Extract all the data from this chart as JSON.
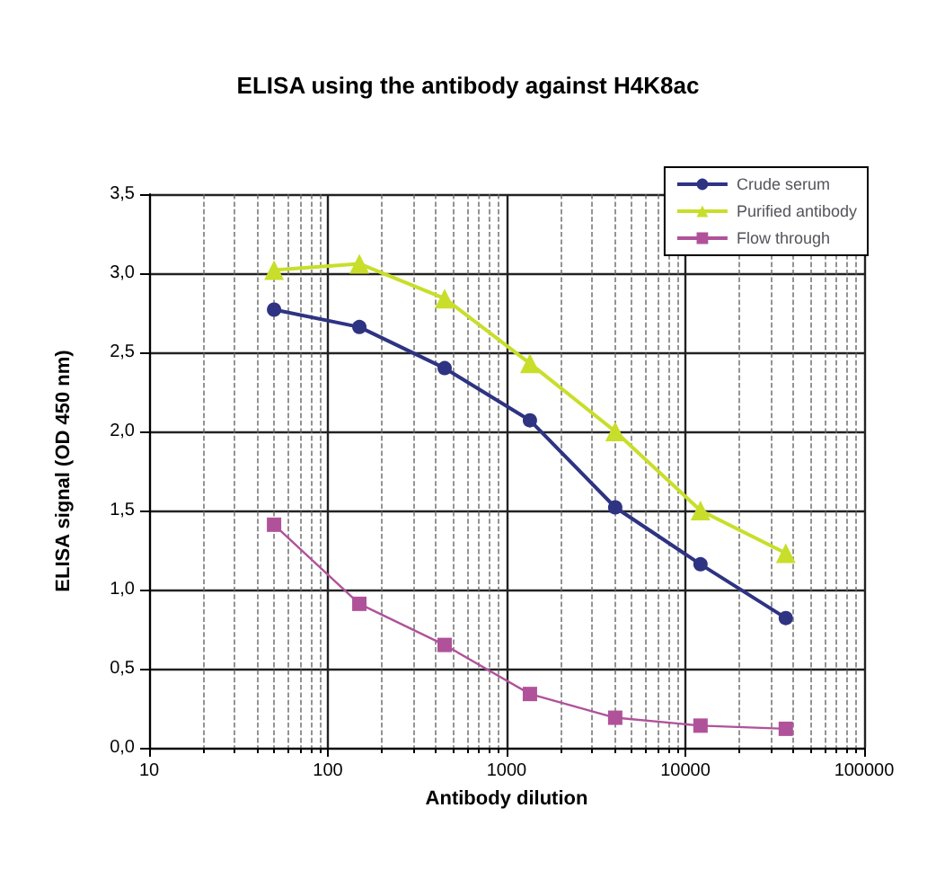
{
  "chart_data": {
    "type": "line",
    "title": "ELISA using the antibody against H4K8ac",
    "xlabel": "Antibody dilution",
    "ylabel": "ELISA signal (OD 450 nm)",
    "x": [
      50,
      150,
      450,
      1350,
      4050,
      12150,
      36450
    ],
    "series": [
      {
        "name": "Crude serum",
        "color": "#2e3382",
        "marker": "circle",
        "values": [
          2.77,
          2.66,
          2.4,
          2.07,
          1.52,
          1.16,
          0.82
        ]
      },
      {
        "name": "Purified antibody",
        "color": "#c8de2a",
        "marker": "triangle",
        "values": [
          3.02,
          3.06,
          2.84,
          2.43,
          2.0,
          1.5,
          1.23
        ]
      },
      {
        "name": "Flow through",
        "color": "#b0529a",
        "marker": "square",
        "values": [
          1.41,
          0.91,
          0.65,
          0.34,
          0.19,
          0.14,
          0.12
        ]
      }
    ],
    "log": "x",
    "xlim": [
      10,
      100000
    ],
    "xticks": [
      10,
      100,
      1000,
      10000,
      100000
    ],
    "ylim": [
      0,
      3.5
    ],
    "yticks": [
      {
        "value": 0,
        "label": "0,0"
      },
      {
        "value": 0.5,
        "label": "0,5"
      },
      {
        "value": 1,
        "label": "1,0"
      },
      {
        "value": 1.5,
        "label": "1,5"
      },
      {
        "value": 2,
        "label": "2,0"
      },
      {
        "value": 2.5,
        "label": "2,5"
      },
      {
        "value": 3,
        "label": "3,0"
      },
      {
        "value": 3.5,
        "label": "3,5"
      }
    ],
    "grid": true,
    "legend": "top right"
  }
}
